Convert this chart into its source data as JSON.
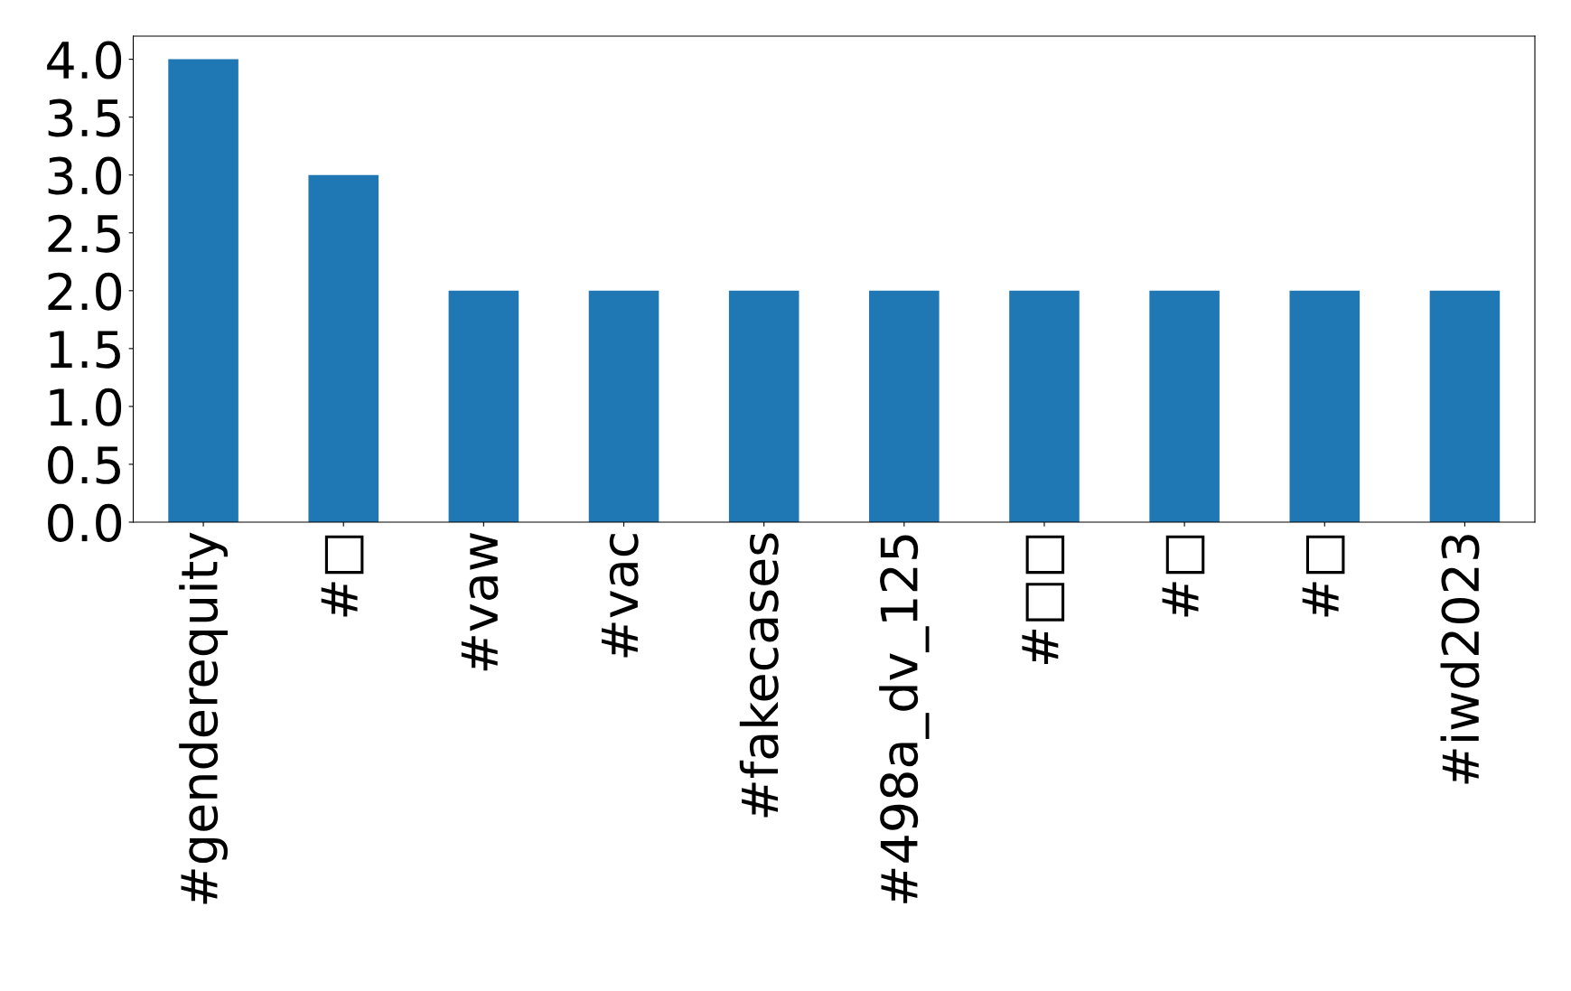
{
  "chart_data": {
    "type": "bar",
    "categories": [
      "#genderequity",
      "#□",
      "#vaw",
      "#vac",
      "#fakecases",
      "#498a_dv_125",
      "#□□",
      "#□",
      "#□",
      "#iwd2023"
    ],
    "values": [
      4,
      3,
      2,
      2,
      2,
      2,
      2,
      2,
      2,
      2
    ],
    "color": "#1f77b4",
    "ylim": [
      0,
      4.2
    ],
    "yticks": [
      {
        "value": 0,
        "label": "0.0"
      },
      {
        "value": 0.5,
        "label": "0.5"
      },
      {
        "value": 1,
        "label": "1.0"
      },
      {
        "value": 1.5,
        "label": "1.5"
      },
      {
        "value": 2,
        "label": "2.0"
      },
      {
        "value": 2.5,
        "label": "2.5"
      },
      {
        "value": 3,
        "label": "3.0"
      },
      {
        "value": 3.5,
        "label": "3.5"
      },
      {
        "value": 4,
        "label": "4.0"
      }
    ],
    "grid": false,
    "legend": false
  }
}
